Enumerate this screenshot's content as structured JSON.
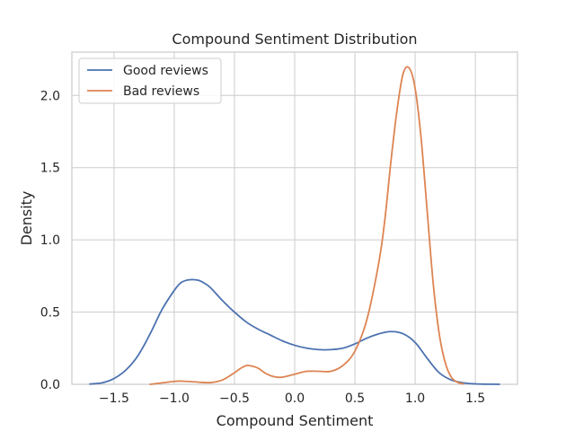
{
  "chart_data": {
    "type": "line",
    "title": "Compound Sentiment Distribution",
    "xlabel": "Compound Sentiment",
    "ylabel": "Density",
    "xlim": [
      -1.85,
      1.85
    ],
    "ylim": [
      0,
      2.3
    ],
    "xticks": [
      -1.5,
      -1.0,
      -0.5,
      0.0,
      0.5,
      1.0,
      1.5
    ],
    "xtick_labels": [
      "−1.5",
      "−1.0",
      "−0.5",
      "0.0",
      "0.5",
      "1.0",
      "1.5"
    ],
    "yticks": [
      0.0,
      0.5,
      1.0,
      1.5,
      2.0
    ],
    "ytick_labels": [
      "0.0",
      "0.5",
      "1.0",
      "1.5",
      "2.0"
    ],
    "grid": true,
    "legend_position": "upper-left",
    "series": [
      {
        "name": "Good reviews",
        "color": "#4c72b0",
        "x": [
          -1.7,
          -1.6,
          -1.5,
          -1.4,
          -1.3,
          -1.2,
          -1.1,
          -1.0,
          -0.95,
          -0.9,
          -0.85,
          -0.8,
          -0.75,
          -0.7,
          -0.6,
          -0.5,
          -0.4,
          -0.3,
          -0.2,
          -0.1,
          0.0,
          0.1,
          0.2,
          0.3,
          0.4,
          0.5,
          0.6,
          0.7,
          0.8,
          0.9,
          1.0,
          1.1,
          1.2,
          1.3,
          1.4,
          1.5,
          1.6,
          1.7
        ],
        "y": [
          0.002,
          0.01,
          0.04,
          0.1,
          0.2,
          0.35,
          0.52,
          0.65,
          0.7,
          0.72,
          0.725,
          0.72,
          0.7,
          0.67,
          0.58,
          0.5,
          0.43,
          0.38,
          0.34,
          0.3,
          0.27,
          0.25,
          0.24,
          0.24,
          0.25,
          0.28,
          0.32,
          0.35,
          0.365,
          0.35,
          0.29,
          0.18,
          0.08,
          0.03,
          0.01,
          0.003,
          0.001,
          0.0
        ]
      },
      {
        "name": "Bad reviews",
        "color": "#dd8452",
        "x": [
          -1.2,
          -1.1,
          -1.0,
          -0.95,
          -0.9,
          -0.85,
          -0.8,
          -0.7,
          -0.6,
          -0.5,
          -0.45,
          -0.4,
          -0.35,
          -0.3,
          -0.25,
          -0.2,
          -0.15,
          -0.1,
          0.0,
          0.1,
          0.2,
          0.3,
          0.4,
          0.5,
          0.6,
          0.7,
          0.75,
          0.8,
          0.85,
          0.9,
          0.95,
          1.0,
          1.05,
          1.1,
          1.15,
          1.2,
          1.25,
          1.3,
          1.35,
          1.4
        ],
        "y": [
          0.0,
          0.01,
          0.02,
          0.022,
          0.02,
          0.018,
          0.015,
          0.012,
          0.03,
          0.08,
          0.11,
          0.13,
          0.125,
          0.11,
          0.08,
          0.06,
          0.05,
          0.05,
          0.07,
          0.09,
          0.09,
          0.09,
          0.13,
          0.23,
          0.45,
          0.85,
          1.15,
          1.55,
          1.9,
          2.15,
          2.19,
          2.05,
          1.7,
          1.2,
          0.7,
          0.35,
          0.15,
          0.05,
          0.015,
          0.003
        ]
      }
    ]
  }
}
